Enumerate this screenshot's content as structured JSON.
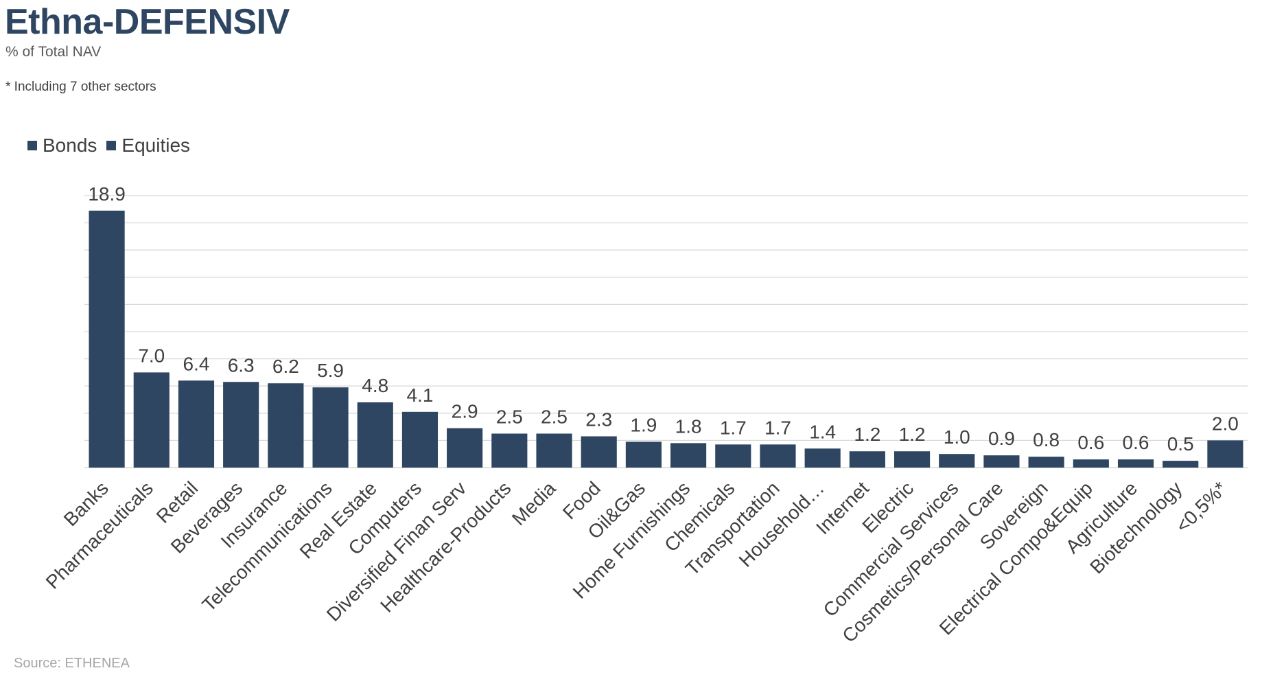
{
  "header": {
    "title": "Ethna-DEFENSIV",
    "subtitle": "% of Total NAV",
    "note": "* Including 7 other sectors"
  },
  "legend": [
    {
      "label": "Bonds",
      "color": "#2e4661"
    },
    {
      "label": "Equities",
      "color": "#2e4661"
    }
  ],
  "footer": {
    "source": "Source: ETHENEA"
  },
  "colors": {
    "bar": "#2e4661",
    "gridline": "#d9d9d9",
    "text": "#404040"
  },
  "chart_data": {
    "type": "bar",
    "title": "Ethna-DEFENSIV",
    "subtitle": "% of Total NAV",
    "xlabel": "",
    "ylabel": "",
    "ylim": [
      0,
      20
    ],
    "gridlines": true,
    "grid_step": 2,
    "legend_position": "top-left",
    "categories": [
      "Banks",
      "Pharmaceuticals",
      "Retail",
      "Beverages",
      "Insurance",
      "Telecommunications",
      "Real Estate",
      "Computers",
      "Diversified Finan Serv",
      "Healthcare-Products",
      "Media",
      "Food",
      "Oil&Gas",
      "Home Furnishings",
      "Chemicals",
      "Transportation",
      "Household…",
      "Internet",
      "Electric",
      "Commercial Services",
      "Cosmetics/Personal Care",
      "Sovereign",
      "Electrical Compo&Equip",
      "Agriculture",
      "Biotechnology",
      "<0,5%*"
    ],
    "values": [
      18.9,
      7.0,
      6.4,
      6.3,
      6.2,
      5.9,
      4.8,
      4.1,
      2.9,
      2.5,
      2.5,
      2.3,
      1.9,
      1.8,
      1.7,
      1.7,
      1.4,
      1.2,
      1.2,
      1.0,
      0.9,
      0.8,
      0.6,
      0.6,
      0.5,
      2.0
    ],
    "value_labels": [
      "18.9",
      "7.0",
      "6.4",
      "6.3",
      "6.2",
      "5.9",
      "4.8",
      "4.1",
      "2.9",
      "2.5",
      "2.5",
      "2.3",
      "1.9",
      "1.8",
      "1.7",
      "1.7",
      "1.4",
      "1.2",
      "1.2",
      "1.0",
      "0.9",
      "0.8",
      "0.6",
      "0.6",
      "0.5",
      "2.0"
    ]
  }
}
